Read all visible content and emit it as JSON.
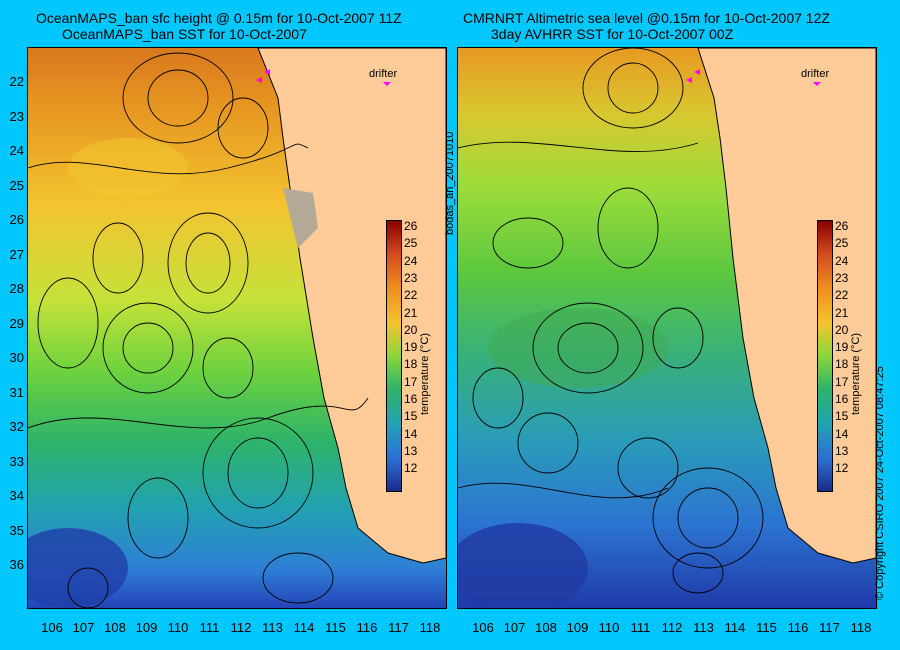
{
  "left_panel": {
    "title_line1": "OceanMAPS_ban sfc height @ 0.15m for 10-Oct-2007 11Z",
    "title_line2": "OceanMAPS_ban SST for 10-Oct-2007",
    "drifter_label": "drifter"
  },
  "right_panel": {
    "title_line1": "CMRNRT Altimetric sea level  @0.15m  for 10-Oct-2007 12Z",
    "title_line2": "3day AVHRR SST for 10-Oct-2007 00Z",
    "drifter_label": "drifter"
  },
  "latitude_labels": [
    "22",
    "23",
    "24",
    "25",
    "26",
    "27",
    "28",
    "29",
    "30",
    "31",
    "32",
    "33",
    "34",
    "35",
    "36"
  ],
  "longitude_labels": [
    "106",
    "107",
    "108",
    "109",
    "110",
    "111",
    "112",
    "113",
    "114",
    "115",
    "116",
    "117",
    "118"
  ],
  "colorbar": {
    "ticks": [
      "26",
      "25",
      "24",
      "23",
      "22",
      "21",
      "20",
      "19",
      "18",
      "17",
      "16",
      "15",
      "14",
      "13",
      "12"
    ],
    "label": "temperature (°C)"
  },
  "side_text": {
    "run_id": "bodas_an_20071010",
    "copyright": "© Copyright CSIRO 2007  24-Oct-2007 08:47:25"
  },
  "colors": {
    "background": "#00c8ff",
    "land": "#ffcc99",
    "drifter_marker": "#ff00ff"
  }
}
